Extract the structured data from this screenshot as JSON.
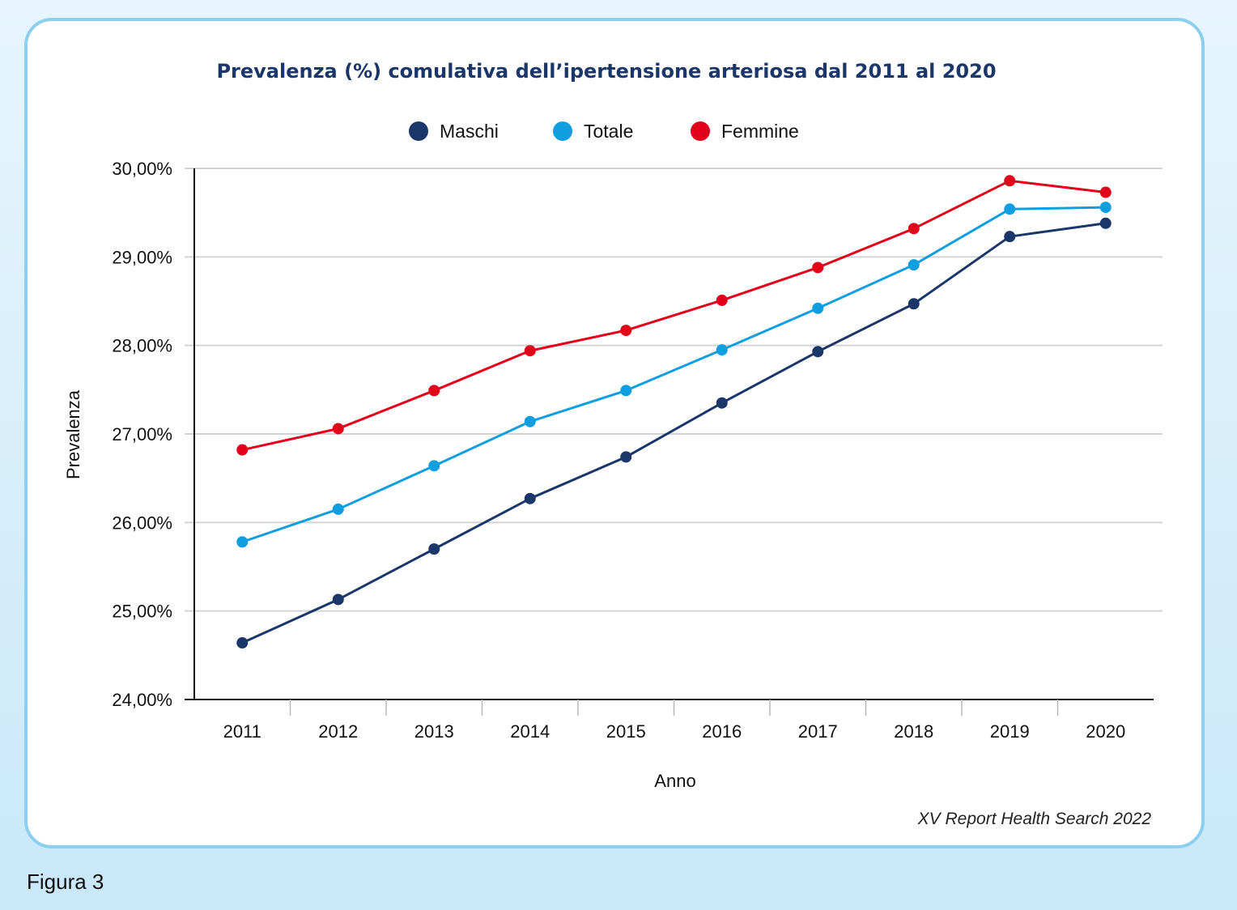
{
  "figure_label": "Figura 3",
  "source": "XV Report Health Search 2022",
  "colors": {
    "Maschi": "#1b3668",
    "Totale": "#0f9ee0",
    "Femmine": "#e2001a",
    "title": "#1b3668",
    "grid": "#d3d3d3",
    "axis": "#111111"
  },
  "chart_data": {
    "type": "line",
    "title": "Prevalenza (%) comulativa dell’ipertensione arteriosa dal 2011 al 2020",
    "xlabel": "Anno",
    "ylabel": "Prevalenza",
    "categories": [
      "2011",
      "2012",
      "2013",
      "2014",
      "2015",
      "2016",
      "2017",
      "2018",
      "2019",
      "2020"
    ],
    "ylim": [
      24,
      30
    ],
    "yticks": [
      24,
      25,
      26,
      27,
      28,
      29,
      30
    ],
    "ytick_labels": [
      "24,00%",
      "25,00%",
      "26,00%",
      "27,00%",
      "28,00%",
      "29,00%",
      "30,00%"
    ],
    "grid": true,
    "legend_position": "top-center",
    "legend_order": [
      "Maschi",
      "Totale",
      "Femmine"
    ],
    "series": [
      {
        "name": "Femmine",
        "values": [
          26.82,
          27.06,
          27.49,
          27.94,
          28.17,
          28.51,
          28.88,
          29.32,
          29.86,
          29.73
        ]
      },
      {
        "name": "Totale",
        "values": [
          25.78,
          26.15,
          26.64,
          27.14,
          27.49,
          27.95,
          28.42,
          28.91,
          29.54,
          29.56
        ]
      },
      {
        "name": "Maschi",
        "values": [
          24.64,
          25.13,
          25.7,
          26.27,
          26.74,
          27.35,
          27.93,
          28.47,
          29.23,
          29.38
        ]
      }
    ]
  }
}
